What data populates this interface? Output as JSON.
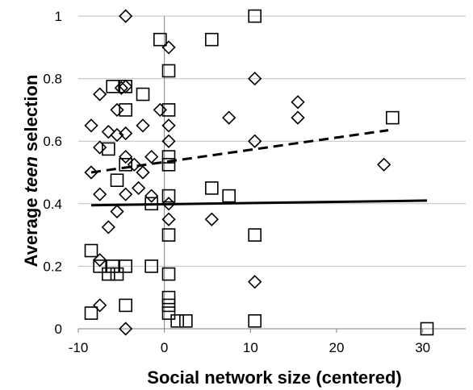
{
  "chart_data": {
    "type": "scatter",
    "title": "",
    "xlabel": "Social network size (centered)",
    "ylabel": {
      "prefix": "Average ",
      "emphasis": "teen",
      "suffix": " selection"
    },
    "xlim": [
      -10,
      35
    ],
    "ylim": [
      0,
      1
    ],
    "x_ticks": [
      -10,
      0,
      10,
      20,
      30
    ],
    "y_ticks": [
      0,
      0.2,
      0.4,
      0.6,
      0.8,
      1
    ],
    "y_tick_labels": [
      "0",
      "0.2",
      "0.4",
      "0.6",
      "0.8",
      "1"
    ],
    "grid": "horizontal",
    "colors": {
      "markers": "#000000",
      "grid": "#bfbfbf",
      "axis": "#808080"
    },
    "series": [
      {
        "marker": "diamond",
        "points": [
          [
            -8.5,
            0.65
          ],
          [
            -8.5,
            0.5
          ],
          [
            -7.5,
            0.75
          ],
          [
            -7.5,
            0.58
          ],
          [
            -7.5,
            0.43
          ],
          [
            -7.5,
            0.22
          ],
          [
            -7.5,
            0.075
          ],
          [
            -6.5,
            0.63
          ],
          [
            -6.5,
            0.325
          ],
          [
            -5.5,
            0.7
          ],
          [
            -5.5,
            0.62
          ],
          [
            -5.5,
            0.375
          ],
          [
            -5,
            0.77
          ],
          [
            -4.5,
            1.0
          ],
          [
            -4.5,
            0.775
          ],
          [
            -4.5,
            0.625
          ],
          [
            -4.5,
            0.55
          ],
          [
            -4.5,
            0.43
          ],
          [
            -4.5,
            0.0
          ],
          [
            -3.5,
            0.525
          ],
          [
            -3,
            0.45
          ],
          [
            -2.5,
            0.65
          ],
          [
            -2.5,
            0.5
          ],
          [
            -1.5,
            0.55
          ],
          [
            -1.5,
            0.425
          ],
          [
            -0.5,
            0.7
          ],
          [
            0.5,
            0.9
          ],
          [
            0.5,
            0.65
          ],
          [
            0.5,
            0.6
          ],
          [
            0.5,
            0.4
          ],
          [
            0.5,
            0.35
          ],
          [
            5.5,
            0.35
          ],
          [
            7.5,
            0.675
          ],
          [
            10.5,
            0.8
          ],
          [
            10.5,
            0.6
          ],
          [
            10.5,
            0.15
          ],
          [
            15.5,
            0.725
          ],
          [
            15.5,
            0.675
          ],
          [
            25.5,
            0.525
          ]
        ]
      },
      {
        "marker": "square",
        "points": [
          [
            -8.5,
            0.25
          ],
          [
            -8.5,
            0.05
          ],
          [
            -7.5,
            0.2
          ],
          [
            -6.5,
            0.575
          ],
          [
            -6.5,
            0.175
          ],
          [
            -6,
            0.775
          ],
          [
            -6,
            0.2
          ],
          [
            -5.5,
            0.475
          ],
          [
            -5.5,
            0.175
          ],
          [
            -4.5,
            0.775
          ],
          [
            -4.5,
            0.7
          ],
          [
            -4.5,
            0.525
          ],
          [
            -4.5,
            0.2
          ],
          [
            -4.5,
            0.075
          ],
          [
            -2.5,
            0.75
          ],
          [
            -1.5,
            0.2
          ],
          [
            -1.5,
            0.4
          ],
          [
            -0.5,
            0.925
          ],
          [
            0.5,
            0.825
          ],
          [
            0.5,
            0.7
          ],
          [
            0.5,
            0.55
          ],
          [
            0.5,
            0.525
          ],
          [
            0.5,
            0.425
          ],
          [
            0.5,
            0.3
          ],
          [
            0.5,
            0.175
          ],
          [
            0.5,
            0.1
          ],
          [
            0.5,
            0.075
          ],
          [
            0.5,
            0.05
          ],
          [
            1.5,
            0.025
          ],
          [
            2.5,
            0.025
          ],
          [
            5.5,
            0.925
          ],
          [
            5.5,
            0.45
          ],
          [
            7.5,
            0.425
          ],
          [
            10.5,
            1.0
          ],
          [
            10.5,
            0.3
          ],
          [
            10.5,
            0.025
          ],
          [
            26.5,
            0.675
          ],
          [
            30.5,
            0.0
          ]
        ]
      }
    ],
    "trend_lines": [
      {
        "style": "dashed",
        "x": [
          -8.5,
          26
        ],
        "y": [
          0.5,
          0.635
        ]
      },
      {
        "style": "solid",
        "x": [
          -8.5,
          30.5
        ],
        "y": [
          0.395,
          0.41
        ]
      }
    ]
  }
}
